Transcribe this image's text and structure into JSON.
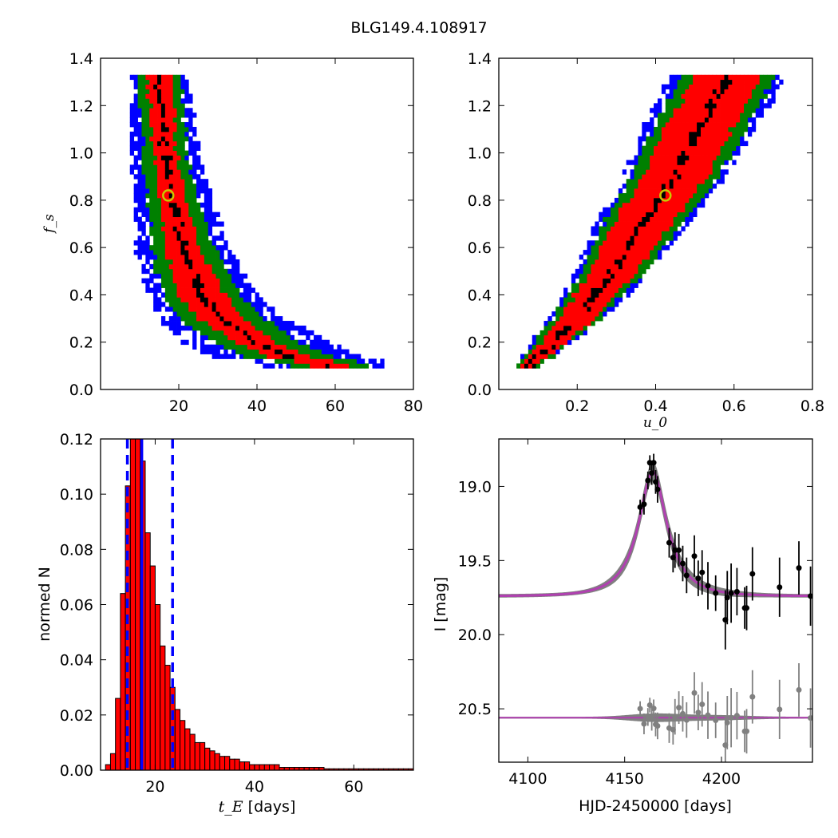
{
  "figure": {
    "title": "BLG149.4.108917"
  },
  "chart_data": [
    {
      "id": "fs_vs_tE",
      "type": "heatmap",
      "xlabel": "",
      "ylabel": "f_s",
      "xlim": [
        0,
        80
      ],
      "ylim": [
        0.0,
        1.4
      ],
      "xticks": [
        20,
        40,
        60,
        80
      ],
      "yticks": [
        0.0,
        0.2,
        0.4,
        0.6,
        0.8,
        1.0,
        1.2,
        1.4
      ],
      "levels": [
        {
          "level": "3sigma",
          "color": "#0000ff"
        },
        {
          "level": "2sigma",
          "color": "#008000"
        },
        {
          "level": "1sigma",
          "color": "#ff0000"
        },
        {
          "level": "best",
          "color": "#000000"
        }
      ],
      "ridge": {
        "fs": [
          1.32,
          1.2,
          1.0,
          0.8,
          0.6,
          0.4,
          0.3,
          0.2,
          0.14,
          0.11
        ],
        "tE_center": [
          15,
          15.5,
          16.5,
          18.5,
          21,
          26,
          31,
          40,
          48,
          58
        ],
        "half_width_1sigma": [
          3.0,
          3.0,
          3.0,
          3.5,
          4.5,
          6.0,
          6.0,
          5.0,
          5.0,
          5.0
        ],
        "half_width_2sigma": [
          5.5,
          5.5,
          5.5,
          6.5,
          8.0,
          10.0,
          11.0,
          11.0,
          11.0,
          10.0
        ],
        "half_width_3sigma": [
          7.5,
          7.5,
          9.0,
          10.0,
          12.0,
          14.0,
          16.0,
          19.0,
          20.0,
          16.0
        ]
      },
      "best_fit": {
        "tE": 17.3,
        "fs": 0.82
      }
    },
    {
      "id": "fs_vs_u0",
      "type": "heatmap",
      "xlabel": "u_0",
      "ylabel": "",
      "xlim": [
        0.0,
        0.8
      ],
      "ylim": [
        0.0,
        1.4
      ],
      "xticks": [
        0.2,
        0.4,
        0.6,
        0.8
      ],
      "yticks": [
        0.0,
        0.2,
        0.4,
        0.6,
        0.8,
        1.0,
        1.2,
        1.4
      ],
      "ridge": {
        "fs": [
          0.1,
          0.3,
          0.5,
          0.7,
          0.9,
          1.1,
          1.32
        ],
        "u0_center": [
          0.075,
          0.2,
          0.29,
          0.365,
          0.45,
          0.51,
          0.585
        ],
        "half_width_1sigma": [
          0.02,
          0.045,
          0.06,
          0.075,
          0.08,
          0.085,
          0.085
        ],
        "half_width_2sigma": [
          0.03,
          0.06,
          0.08,
          0.1,
          0.11,
          0.12,
          0.12
        ],
        "half_width_3sigma": [
          0.035,
          0.07,
          0.095,
          0.12,
          0.13,
          0.145,
          0.15
        ]
      },
      "best_fit": {
        "u0": 0.425,
        "fs": 0.82
      }
    },
    {
      "id": "tE_histogram",
      "type": "bar",
      "xlabel": "t_E",
      "xlabel_unit": " [days]",
      "ylabel": "normed N",
      "xlim": [
        9,
        72
      ],
      "ylim": [
        0.0,
        0.12
      ],
      "xticks": [
        20,
        40,
        60
      ],
      "yticks": [
        0.0,
        0.02,
        0.04,
        0.06,
        0.08,
        0.1,
        0.12
      ],
      "bin_width": 1.0,
      "bin_start": 10,
      "values": [
        0.002,
        0.006,
        0.026,
        0.064,
        0.103,
        0.122,
        0.124,
        0.112,
        0.086,
        0.074,
        0.06,
        0.045,
        0.038,
        0.03,
        0.022,
        0.018,
        0.015,
        0.013,
        0.01,
        0.01,
        0.008,
        0.007,
        0.006,
        0.005,
        0.005,
        0.004,
        0.004,
        0.003,
        0.003,
        0.002,
        0.002,
        0.002,
        0.002,
        0.002,
        0.002,
        0.001,
        0.001,
        0.001,
        0.001,
        0.001,
        0.001,
        0.001,
        0.001,
        0.001,
        0.0005,
        0.0005,
        0.0005,
        0.0005,
        0.0005,
        0.0005,
        0.0005,
        0.0005,
        0.0005,
        0.0005,
        0.0005,
        0.0005,
        0.0005,
        0.0005,
        0.0005,
        0.0005,
        0.0005,
        0.0005
      ],
      "bar_color": "#ff0000",
      "vlines": [
        {
          "x": 17.3,
          "style": "solid",
          "color": "#0000ff"
        },
        {
          "x": 14.4,
          "style": "dashed",
          "color": "#0000ff"
        },
        {
          "x": 23.5,
          "style": "dashed",
          "color": "#0000ff"
        }
      ]
    },
    {
      "id": "lightcurve",
      "type": "line",
      "xlabel": "HJD-2450000 [days]",
      "ylabel": "I [mag]",
      "xlim": [
        4085,
        4247
      ],
      "ylim_inverted": [
        20.86,
        18.68
      ],
      "xticks": [
        4100,
        4150,
        4200
      ],
      "yticks": [
        19.0,
        19.5,
        20.0,
        20.5
      ],
      "model": {
        "t0": 4164.5,
        "tE": 17.3,
        "u0": 0.425,
        "baseline": 19.74,
        "peak": 18.9,
        "line_color": "#b040b0",
        "band_color": "#808080"
      },
      "data_points": {
        "t": [
          4158,
          4160,
          4162,
          4163,
          4164,
          4165,
          4166,
          4167,
          4173,
          4175,
          4176,
          4178,
          4180,
          4182,
          4186,
          4188,
          4190,
          4193,
          4197,
          4202,
          4203,
          4205,
          4208,
          4212,
          4213,
          4216,
          4230,
          4240,
          4246
        ],
        "mag": [
          19.14,
          19.12,
          18.96,
          18.84,
          18.91,
          18.84,
          18.97,
          19.02,
          19.38,
          19.48,
          19.43,
          19.43,
          19.52,
          19.6,
          19.47,
          19.62,
          19.58,
          19.67,
          19.72,
          19.9,
          19.75,
          19.72,
          19.71,
          19.82,
          19.82,
          19.59,
          19.68,
          19.55,
          19.74
        ],
        "err": [
          0.05,
          0.07,
          0.06,
          0.05,
          0.08,
          0.06,
          0.08,
          0.09,
          0.1,
          0.1,
          0.12,
          0.11,
          0.12,
          0.12,
          0.14,
          0.12,
          0.15,
          0.16,
          0.12,
          0.2,
          0.18,
          0.2,
          0.16,
          0.14,
          0.15,
          0.18,
          0.2,
          0.18,
          0.2
        ],
        "color": "#000000"
      },
      "residuals": {
        "offset": 20.56,
        "color": "#808080"
      }
    }
  ]
}
